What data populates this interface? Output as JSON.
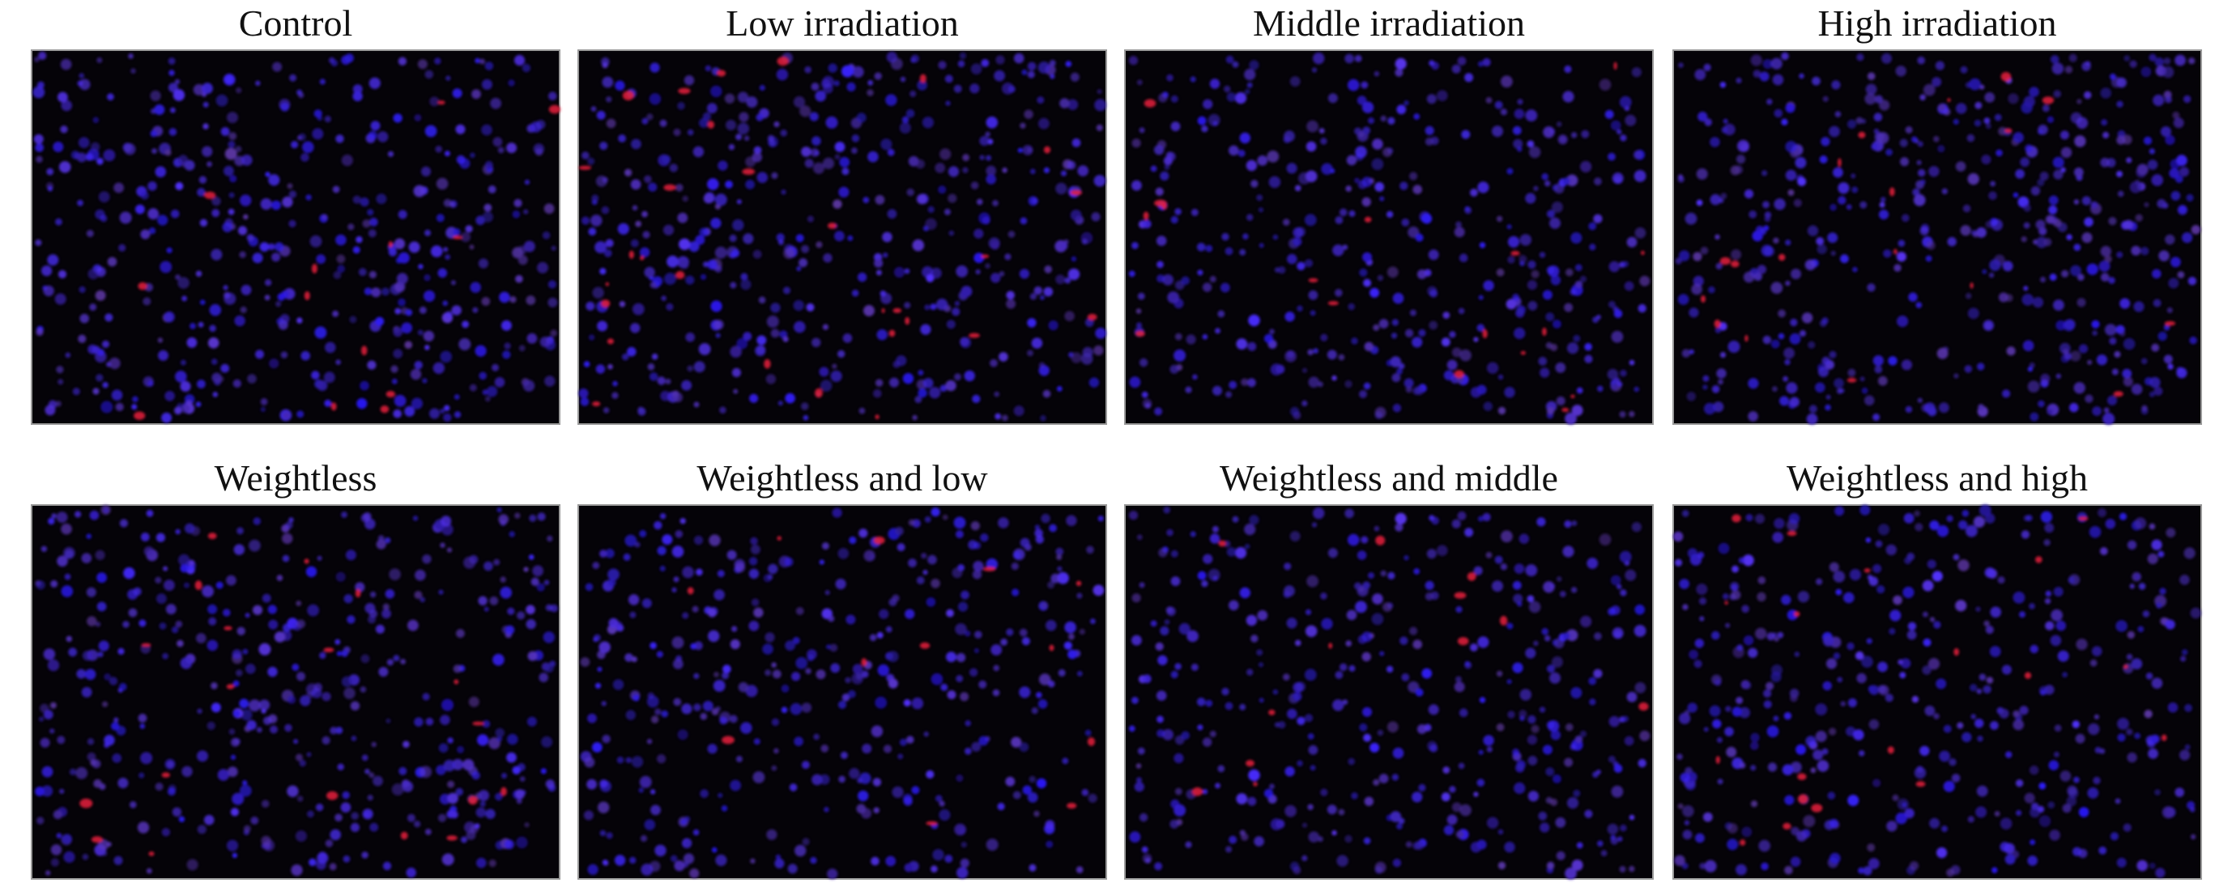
{
  "panels": [
    {
      "label": "Control"
    },
    {
      "label": "Low irradiation"
    },
    {
      "label": "Middle irradiation"
    },
    {
      "label": "High irradiation"
    },
    {
      "label": "Weightless"
    },
    {
      "label": "Weightless and low"
    },
    {
      "label": "Weightless and middle"
    },
    {
      "label": "Weightless and high"
    }
  ]
}
